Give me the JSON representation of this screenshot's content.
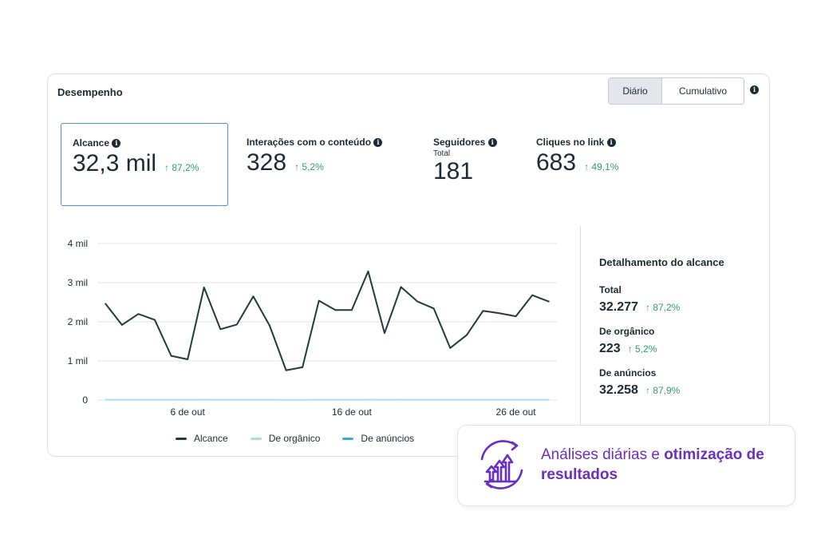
{
  "card": {
    "title": "Desempenho",
    "toggle": {
      "active": "Diário",
      "inactive": "Cumulativo"
    }
  },
  "metrics": [
    {
      "label": "Alcance",
      "value": "32,3 mil",
      "delta": "↑ 87,2%"
    },
    {
      "label": "Interações com o conteúdo",
      "value": "328",
      "delta": "↑ 5,2%"
    },
    {
      "label": "Seguidores",
      "sub": "Total",
      "value": "181"
    },
    {
      "label": "Cliques no link",
      "value": "683",
      "delta": "↑ 49,1%"
    }
  ],
  "chart_data": {
    "type": "line",
    "x": [
      1,
      2,
      3,
      4,
      5,
      6,
      7,
      8,
      9,
      10,
      11,
      12,
      13,
      14,
      15,
      16,
      17,
      18,
      19,
      20,
      21,
      22,
      23,
      24,
      25,
      26,
      27,
      28
    ],
    "x_tick_labels": [
      "6 de out",
      "16 de out",
      "26 de out"
    ],
    "x_tick_positions": [
      6,
      16,
      26
    ],
    "y_tick_labels": [
      "0",
      "1 mil",
      "2 mil",
      "3 mil",
      "4 mil"
    ],
    "y_tick_values": [
      0,
      1000,
      2000,
      3000,
      4000
    ],
    "ylim": [
      0,
      4000
    ],
    "grid": true,
    "legend_position": "bottom",
    "series": [
      {
        "name": "Alcance",
        "color": "#1f3b3b",
        "values": [
          2460,
          1920,
          2200,
          2050,
          1130,
          1040,
          2880,
          1810,
          1930,
          2650,
          1900,
          760,
          840,
          2540,
          2300,
          2300,
          3290,
          1710,
          2890,
          2520,
          2340,
          1330,
          1660,
          2280,
          2220,
          2140,
          2680,
          2520
        ]
      },
      {
        "name": "De orgânico",
        "color": "#a8dcf5",
        "values": [
          8,
          8,
          8,
          8,
          7,
          7,
          9,
          7,
          8,
          8,
          7,
          6,
          6,
          8,
          8,
          8,
          9,
          7,
          9,
          8,
          8,
          7,
          7,
          8,
          8,
          8,
          8,
          8
        ]
      },
      {
        "name": "De anúncios",
        "color": "#33b3c9",
        "values": [
          2452,
          1912,
          2192,
          2042,
          1123,
          1033,
          2871,
          1803,
          1922,
          2642,
          1893,
          754,
          834,
          2532,
          2292,
          2292,
          3281,
          1703,
          2881,
          2512,
          2332,
          1323,
          1653,
          2272,
          2212,
          2132,
          2672,
          2512
        ]
      }
    ]
  },
  "breakdown": {
    "title": "Detalhamento do alcance",
    "items": [
      {
        "label": "Total",
        "value": "32.277",
        "delta": "↑ 87,2%"
      },
      {
        "label": "De orgânico",
        "value": "223",
        "delta": "↑ 5,2%"
      },
      {
        "label": "De anúncios",
        "value": "32.258",
        "delta": "↑ 87,9%"
      }
    ]
  },
  "promo": {
    "text_regular": "Análises diárias e ",
    "text_bold": "otimização de resultados",
    "color": "#6a2ec2",
    "icon": "growth-arrows-icon"
  }
}
